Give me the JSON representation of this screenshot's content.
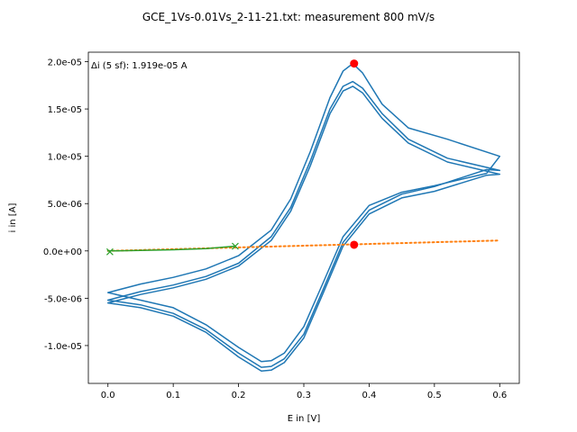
{
  "chart_data": {
    "type": "line",
    "title": "GCE_1Vs-0.01Vs_2-11-21.txt: measurement 800 mV/s",
    "xlabel": "E in [V]",
    "ylabel": "i in [A]",
    "xlim": [
      -0.03,
      0.63
    ],
    "ylim": [
      -1.4e-05,
      2.1e-05
    ],
    "xticks": [
      0.0,
      0.1,
      0.2,
      0.3,
      0.4,
      0.5,
      0.6
    ],
    "xtick_labels": [
      "0.0",
      "0.1",
      "0.2",
      "0.3",
      "0.4",
      "0.5",
      "0.6"
    ],
    "yticks": [
      -1e-05,
      -5e-06,
      0,
      5e-06,
      1e-05,
      1.5e-05,
      2e-05
    ],
    "ytick_labels": [
      "-1.0e-05",
      "-5.0e-06",
      "0.0e+00",
      "5.0e-06",
      "1.0e-05",
      "1.5e-05",
      "2.0e-05"
    ],
    "grid": false,
    "annotation": "Δi (5 sf): 1.919e-05 A",
    "colors": {
      "cv": "#1f77b4",
      "baseline": "#ff7f0e",
      "fit": "#2ca02c",
      "peaks": "#ff0000"
    },
    "series": [
      {
        "role": "cycle",
        "style": "solid",
        "x": [
          0.0,
          0.05,
          0.1,
          0.15,
          0.2,
          0.25,
          0.28,
          0.31,
          0.34,
          0.36,
          0.375,
          0.39,
          0.42,
          0.46,
          0.52,
          0.6,
          0.58,
          0.5,
          0.45,
          0.4,
          0.36,
          0.33,
          0.3,
          0.27,
          0.25,
          0.235,
          0.2,
          0.15,
          0.1,
          0.05,
          0.0
        ],
        "y": [
          -4.4e-06,
          -3.5e-06,
          -2.8e-06,
          -1.9e-06,
          -5e-07,
          2.2e-06,
          5.5e-06,
          1.05e-05,
          1.62e-05,
          1.9e-05,
          1.98e-05,
          1.88e-05,
          1.55e-05,
          1.3e-05,
          1.18e-05,
          1e-05,
          8.2e-06,
          6.9e-06,
          6.2e-06,
          4.8e-06,
          1.5e-06,
          -3.3e-06,
          -8e-06,
          -1.08e-05,
          -1.16e-05,
          -1.17e-05,
          -1.02e-05,
          -7.8e-06,
          -6e-06,
          -5.2e-06,
          -4.4e-06
        ]
      },
      {
        "role": "cycle",
        "style": "solid",
        "x": [
          0.0,
          0.05,
          0.1,
          0.15,
          0.2,
          0.25,
          0.28,
          0.31,
          0.34,
          0.36,
          0.375,
          0.39,
          0.42,
          0.46,
          0.52,
          0.6,
          0.58,
          0.5,
          0.45,
          0.4,
          0.36,
          0.33,
          0.3,
          0.27,
          0.25,
          0.235,
          0.2,
          0.15,
          0.1,
          0.05,
          0.0
        ],
        "y": [
          -5.2e-06,
          -4.3e-06,
          -3.6e-06,
          -2.7e-06,
          -1.3e-06,
          1.5e-06,
          4.6e-06,
          9.5e-06,
          1.5e-05,
          1.74e-05,
          1.79e-05,
          1.72e-05,
          1.45e-05,
          1.18e-05,
          9.8e-06,
          8.5e-06,
          8.6e-06,
          6.8e-06,
          6e-06,
          4.3e-06,
          9e-07,
          -4e-06,
          -8.8e-06,
          -1.14e-05,
          -1.22e-05,
          -1.23e-05,
          -1.08e-05,
          -8.3e-06,
          -6.6e-06,
          -5.7e-06,
          -5.2e-06
        ]
      },
      {
        "role": "cycle",
        "style": "solid",
        "x": [
          0.0,
          0.05,
          0.1,
          0.15,
          0.2,
          0.25,
          0.28,
          0.31,
          0.34,
          0.36,
          0.375,
          0.39,
          0.42,
          0.46,
          0.52,
          0.6,
          0.58,
          0.5,
          0.45,
          0.4,
          0.36,
          0.33,
          0.3,
          0.27,
          0.25,
          0.235,
          0.2,
          0.15,
          0.1,
          0.05,
          0.0
        ],
        "y": [
          -5.5e-06,
          -4.6e-06,
          -3.9e-06,
          -3e-06,
          -1.6e-06,
          1.1e-06,
          4.2e-06,
          9e-06,
          1.45e-05,
          1.69e-05,
          1.74e-05,
          1.67e-05,
          1.4e-05,
          1.14e-05,
          9.4e-06,
          8.1e-06,
          8e-06,
          6.3e-06,
          5.6e-06,
          3.9e-06,
          5e-07,
          -4.4e-06,
          -9.2e-06,
          -1.18e-05,
          -1.26e-05,
          -1.27e-05,
          -1.12e-05,
          -8.6e-06,
          -6.9e-06,
          -6e-06,
          -5.5e-06
        ]
      },
      {
        "role": "baseline",
        "style": "dotted",
        "x": [
          0.0,
          0.6
        ],
        "y": [
          0.0,
          1.1e-06
        ]
      },
      {
        "role": "fit",
        "style": "solid",
        "x": [
          0.0,
          0.05,
          0.1,
          0.15,
          0.195
        ],
        "y": [
          0.0,
          5e-08,
          1.2e-07,
          2.5e-07,
          5e-07
        ]
      }
    ],
    "markers": {
      "fit_endpoints": {
        "x": [
          0.003,
          0.195
        ],
        "y": [
          -1e-07,
          5e-07
        ]
      },
      "peaks": {
        "x": [
          0.377,
          0.377
        ],
        "y": [
          1.98e-05,
          6.5e-07
        ]
      }
    }
  }
}
